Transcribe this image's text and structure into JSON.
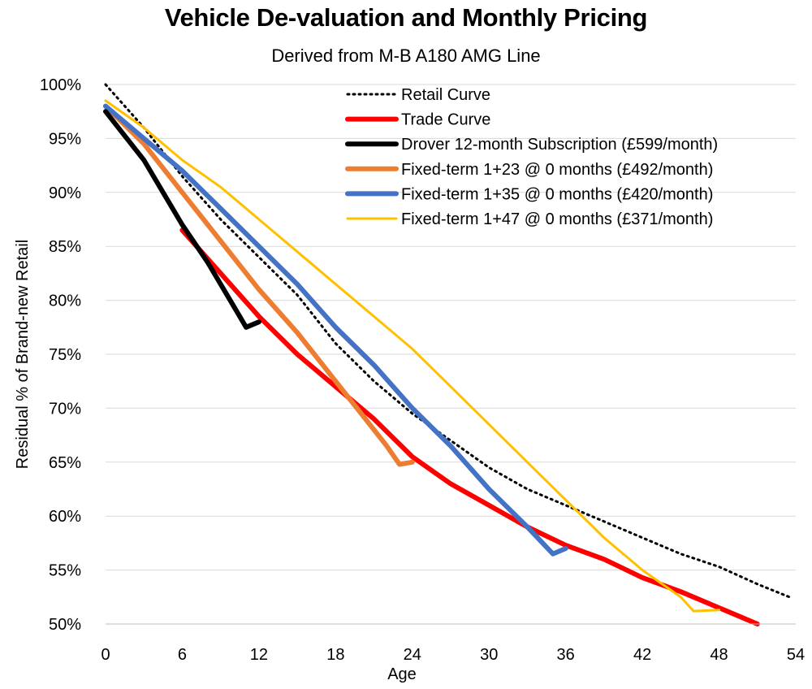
{
  "chart_data": {
    "type": "line",
    "title": "Vehicle De-valuation and Monthly Pricing",
    "subtitle": "Derived from M-B A180 AMG Line",
    "xlabel": "Age",
    "ylabel": "Residual % of Brand-new Retail",
    "xlim": [
      0,
      54
    ],
    "ylim": [
      50,
      100
    ],
    "xticks": [
      0,
      6,
      12,
      18,
      24,
      30,
      36,
      42,
      48,
      54
    ],
    "yticks": [
      50,
      55,
      60,
      65,
      70,
      75,
      80,
      85,
      90,
      95,
      100
    ],
    "ytick_suffix": "%",
    "grid": "horizontal",
    "legend_position": "top-right",
    "series": [
      {
        "name": "Retail Curve",
        "color": "#000000",
        "style": "dotted",
        "points": [
          [
            0,
            100
          ],
          [
            3,
            96
          ],
          [
            6,
            91.5
          ],
          [
            9,
            87.5
          ],
          [
            12,
            84
          ],
          [
            15,
            80.5
          ],
          [
            18,
            76
          ],
          [
            21,
            72.5
          ],
          [
            24,
            69.5
          ],
          [
            27,
            67
          ],
          [
            30,
            64.5
          ],
          [
            33,
            62.5
          ],
          [
            36,
            61
          ],
          [
            39,
            59.5
          ],
          [
            42,
            58
          ],
          [
            45,
            56.5
          ],
          [
            48,
            55.3
          ],
          [
            51,
            53.7
          ],
          [
            53.5,
            52.5
          ]
        ]
      },
      {
        "name": "Trade Curve",
        "color": "#FF0000",
        "style": "thick",
        "points": [
          [
            6,
            86.5
          ],
          [
            9,
            82.5
          ],
          [
            12,
            78.5
          ],
          [
            15,
            75
          ],
          [
            18,
            72
          ],
          [
            21,
            69
          ],
          [
            24,
            65.5
          ],
          [
            27,
            63
          ],
          [
            30,
            61
          ],
          [
            33,
            59
          ],
          [
            36,
            57.3
          ],
          [
            39,
            56
          ],
          [
            42,
            54.3
          ],
          [
            45,
            53
          ],
          [
            48,
            51.5
          ],
          [
            51,
            50
          ]
        ]
      },
      {
        "name": "Drover 12-month Subscription  (£599/month)",
        "color": "#000000",
        "style": "thick",
        "points": [
          [
            0,
            97.5
          ],
          [
            3,
            93
          ],
          [
            6,
            87
          ],
          [
            8,
            83.5
          ],
          [
            10,
            79.5
          ],
          [
            11,
            77.5
          ],
          [
            12,
            78
          ]
        ]
      },
      {
        "name": "Fixed-term 1+23 @ 0 months (£492/month)",
        "color": "#ED7D31",
        "style": "thick",
        "points": [
          [
            0,
            98
          ],
          [
            3,
            94.5
          ],
          [
            6,
            90
          ],
          [
            9,
            85.5
          ],
          [
            12,
            81
          ],
          [
            15,
            77
          ],
          [
            18,
            72.5
          ],
          [
            20,
            69.5
          ],
          [
            22,
            66.5
          ],
          [
            23,
            64.8
          ],
          [
            24,
            65
          ]
        ]
      },
      {
        "name": "Fixed-term 1+35 @ 0 months (£420/month)",
        "color": "#4472C4",
        "style": "thick",
        "points": [
          [
            0,
            98
          ],
          [
            3,
            95
          ],
          [
            6,
            92
          ],
          [
            9,
            88.5
          ],
          [
            12,
            85
          ],
          [
            15,
            81.5
          ],
          [
            18,
            77.5
          ],
          [
            21,
            74
          ],
          [
            24,
            70
          ],
          [
            27,
            66.5
          ],
          [
            30,
            62.5
          ],
          [
            33,
            59
          ],
          [
            35,
            56.5
          ],
          [
            36,
            57
          ]
        ]
      },
      {
        "name": "Fixed-term 1+47 @ 0 months (£371/month)",
        "color": "#FFC000",
        "style": "medium",
        "points": [
          [
            0,
            98.5
          ],
          [
            3,
            96
          ],
          [
            6,
            93
          ],
          [
            9,
            90.5
          ],
          [
            12,
            87.5
          ],
          [
            15,
            84.5
          ],
          [
            18,
            81.5
          ],
          [
            21,
            78.5
          ],
          [
            24,
            75.5
          ],
          [
            27,
            72
          ],
          [
            30,
            68.5
          ],
          [
            33,
            65
          ],
          [
            36,
            61.5
          ],
          [
            39,
            58
          ],
          [
            42,
            55
          ],
          [
            45,
            52.5
          ],
          [
            46,
            51.2
          ],
          [
            48,
            51.3
          ]
        ]
      }
    ]
  }
}
